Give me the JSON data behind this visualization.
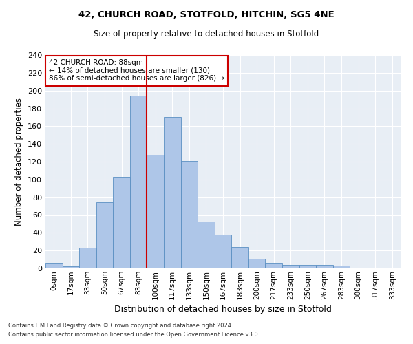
{
  "title1": "42, CHURCH ROAD, STOTFOLD, HITCHIN, SG5 4NE",
  "title2": "Size of property relative to detached houses in Stotfold",
  "xlabel": "Distribution of detached houses by size in Stotfold",
  "ylabel": "Number of detached properties",
  "bar_labels": [
    "0sqm",
    "17sqm",
    "33sqm",
    "50sqm",
    "67sqm",
    "83sqm",
    "100sqm",
    "117sqm",
    "133sqm",
    "150sqm",
    "167sqm",
    "183sqm",
    "200sqm",
    "217sqm",
    "233sqm",
    "250sqm",
    "267sqm",
    "283sqm",
    "300sqm",
    "317sqm",
    "333sqm"
  ],
  "bar_values": [
    6,
    2,
    23,
    74,
    103,
    194,
    128,
    170,
    121,
    53,
    38,
    24,
    11,
    6,
    4,
    4,
    4,
    3,
    0,
    0,
    0
  ],
  "bar_color": "#aec6e8",
  "bar_edge_color": "#5a8fc2",
  "vline_color": "#cc0000",
  "vline_pos": 5.5,
  "annotation_text": "42 CHURCH ROAD: 88sqm\n← 14% of detached houses are smaller (130)\n86% of semi-detached houses are larger (826) →",
  "annotation_box_color": "#ffffff",
  "annotation_box_edge_color": "#cc0000",
  "ylim": [
    0,
    240
  ],
  "yticks": [
    0,
    20,
    40,
    60,
    80,
    100,
    120,
    140,
    160,
    180,
    200,
    220,
    240
  ],
  "bg_color": "#e8eef5",
  "grid_color": "#ffffff",
  "footnote1": "Contains HM Land Registry data © Crown copyright and database right 2024.",
  "footnote2": "Contains public sector information licensed under the Open Government Licence v3.0."
}
